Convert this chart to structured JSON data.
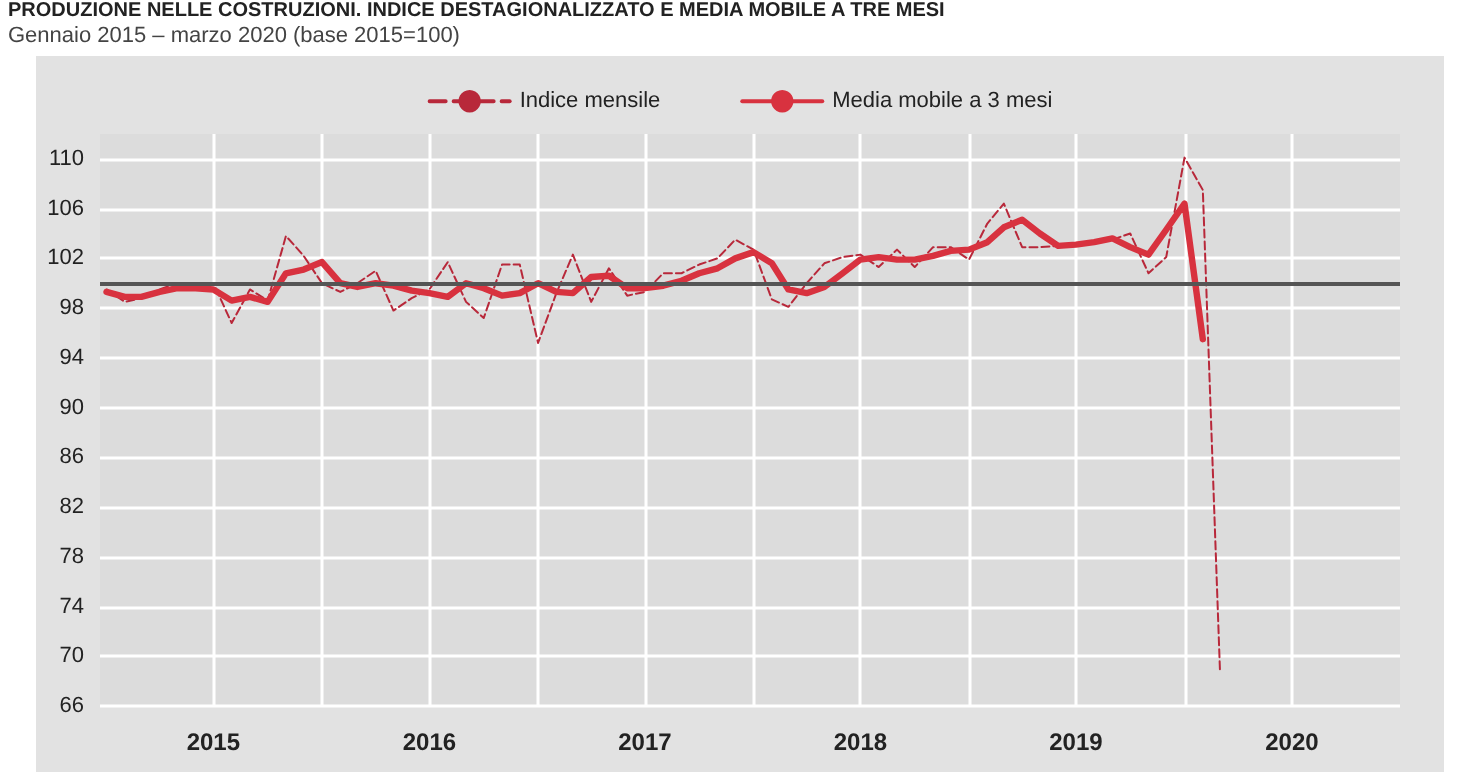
{
  "chart_data": {
    "type": "line",
    "title": "PRODUZIONE NELLE COSTRUZIONI. INDICE DESTAGIONALIZZATO E MEDIA MOBILE A TRE MESI",
    "subtitle": "Gennaio 2015 – marzo 2020 (base 2015=100)",
    "x": [
      "2015-01",
      "2015-02",
      "2015-03",
      "2015-04",
      "2015-05",
      "2015-06",
      "2015-07",
      "2015-08",
      "2015-09",
      "2015-10",
      "2015-11",
      "2015-12",
      "2016-01",
      "2016-02",
      "2016-03",
      "2016-04",
      "2016-05",
      "2016-06",
      "2016-07",
      "2016-08",
      "2016-09",
      "2016-10",
      "2016-11",
      "2016-12",
      "2017-01",
      "2017-02",
      "2017-03",
      "2017-04",
      "2017-05",
      "2017-06",
      "2017-07",
      "2017-08",
      "2017-09",
      "2017-10",
      "2017-11",
      "2017-12",
      "2018-01",
      "2018-02",
      "2018-03",
      "2018-04",
      "2018-05",
      "2018-06",
      "2018-07",
      "2018-08",
      "2018-09",
      "2018-10",
      "2018-11",
      "2018-12",
      "2019-01",
      "2019-02",
      "2019-03",
      "2019-04",
      "2019-05",
      "2019-06",
      "2019-07",
      "2019-08",
      "2019-09",
      "2019-10",
      "2019-11",
      "2019-12",
      "2020-01",
      "2020-02",
      "2020-03"
    ],
    "series": [
      {
        "name": "Indice mensile",
        "color": "#b8283a",
        "line_style": "dashed",
        "values": [
          99.5,
          98.5,
          98.8,
          99.5,
          100,
          99.8,
          100,
          96.8,
          99.5,
          98.6,
          103.8,
          102.2,
          100,
          99.3,
          100,
          101,
          97.8,
          98.8,
          99.5,
          101.7,
          98.5,
          97.2,
          101.5,
          101.5,
          95.2,
          99.2,
          102.3,
          98.5,
          101.2,
          99,
          99.3,
          100.8,
          100.8,
          101.5,
          102,
          103.5,
          102.7,
          98.7,
          98.1,
          100,
          101.6,
          102.1,
          102.3,
          101.3,
          102.7,
          101.3,
          102.9,
          102.9,
          101.9,
          104.8,
          106.4,
          102.9,
          102.9,
          103,
          103.1,
          103.2,
          103.5,
          104,
          100.8,
          102.1,
          110.1,
          107.5,
          68.9
        ]
      },
      {
        "name": "Media mobile a 3 mesi",
        "color": "#d8323f",
        "line_style": "solid",
        "values": [
          99.3,
          98.9,
          98.9,
          99.3,
          99.6,
          99.6,
          99.5,
          98.6,
          98.9,
          98.5,
          100.8,
          101.1,
          101.7,
          100,
          99.7,
          100,
          99.8,
          99.4,
          99.2,
          98.9,
          100,
          99.6,
          99,
          99.2,
          100,
          99.3,
          99.2,
          100.5,
          100.6,
          99.6,
          99.6,
          99.8,
          100.2,
          100.8,
          101.2,
          102,
          102.5,
          101.6,
          99.5,
          99.2,
          99.7,
          100.8,
          101.9,
          102.1,
          101.9,
          101.9,
          102.2,
          102.6,
          102.7,
          103.3,
          104.5,
          105.1,
          104,
          103,
          103.1,
          103.3,
          103.6,
          102.9,
          102.3,
          104.3,
          106.4,
          95.5,
          null
        ]
      }
    ],
    "xlim": [
      "2014-12-21",
      "2020-12-31"
    ],
    "xticks": [
      {
        "value": "2015-07-01",
        "label": "2015"
      },
      {
        "value": "2016-01-01",
        "label": null
      },
      {
        "value": "2016-07-01",
        "label": "2016"
      },
      {
        "value": "2017-01-01",
        "label": null
      },
      {
        "value": "2017-07-01",
        "label": "2017"
      },
      {
        "value": "2018-01-01",
        "label": null
      },
      {
        "value": "2018-07-01",
        "label": "2018"
      },
      {
        "value": "2019-01-01",
        "label": null
      },
      {
        "value": "2019-07-01",
        "label": "2019"
      },
      {
        "value": "2020-01-01",
        "label": null
      },
      {
        "value": "2020-07-01",
        "label": "2020"
      }
    ],
    "ylim": [
      66,
      112
    ],
    "yticks": [
      66,
      70,
      74,
      78,
      82,
      86,
      90,
      94,
      98,
      102,
      106,
      110
    ],
    "ref_lines": [
      {
        "axis": "y",
        "value": 100,
        "label": null,
        "color": "#555555"
      }
    ],
    "grid": true,
    "legend": "top",
    "marker": "none"
  }
}
